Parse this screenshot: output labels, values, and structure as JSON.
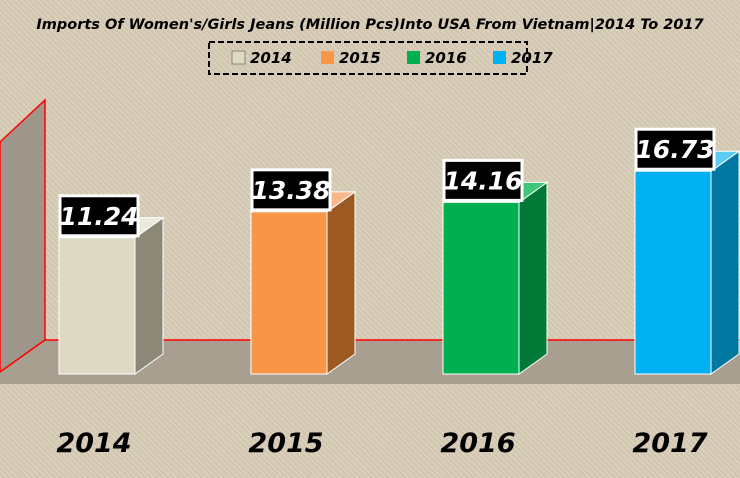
{
  "chart_data": {
    "type": "bar",
    "title": "Imports Of Women's/Girls Jeans (Million Pcs)Into USA From Vietnam|2014 To 2017",
    "categories": [
      "2014",
      "2015",
      "2016",
      "2017"
    ],
    "values": [
      11.24,
      13.38,
      14.16,
      16.73
    ],
    "value_labels": [
      "11.24",
      "13.38",
      "14.16",
      "16.73"
    ],
    "colors": [
      "#ddd9c3",
      "#f79646",
      "#00b050",
      "#00b0f0"
    ],
    "side_colors": [
      "#8c8878",
      "#9c5a22",
      "#007a36",
      "#0077a0"
    ],
    "top_colors": [
      "#ece9dc",
      "#fab78a",
      "#3fc67a",
      "#5cccf5"
    ],
    "legend": [
      "2014",
      "2015",
      "2016",
      "2017"
    ],
    "legend_position": "top",
    "xlabel": "",
    "ylabel": "",
    "three_d": true,
    "grid": false
  }
}
